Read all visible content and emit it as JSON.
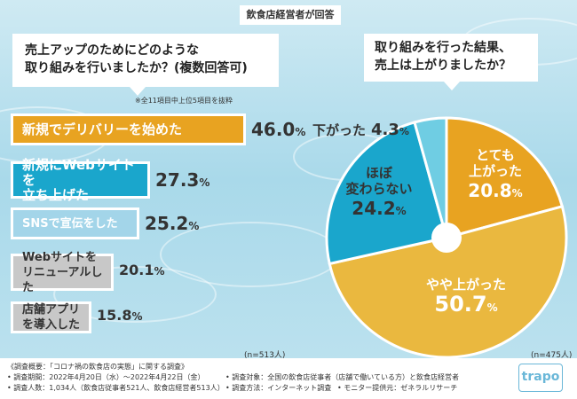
{
  "header_tag": "飲食店経営者が回答",
  "left_question": [
    "売上アップのためにどのような",
    "取り組みを行いましたか？(複数回答可)"
  ],
  "right_question": [
    "取り組みを行った結果、",
    "売上は上がりましたか？"
  ],
  "note": "※全11項目中上位5項目を抜粋",
  "left_n": "(n=513人)",
  "right_n": "(n=475人)",
  "colors": {
    "orange": "#e8a321",
    "blue": "#1aa6cc",
    "light_blue": "#a3d5e9",
    "gray": "#c8c8c8",
    "light_orange": "#eab83f",
    "pale_blue": "#6fcde3"
  },
  "chart_data": [
    {
      "type": "bar",
      "categories": [
        "新規でデリバリーを始めた",
        "新規にWebサイトを立ち上げた",
        "SNSで宣伝をした",
        "Webサイトをリニューアルした",
        "店舗アプリを導入した"
      ],
      "values": [
        46.0,
        27.3,
        25.2,
        20.1,
        15.8
      ],
      "labels": [
        {
          "lines": [
            "新規でデリバリーを始めた"
          ],
          "pct": "46.0",
          "unit": "%"
        },
        {
          "lines": [
            "新規にWebサイトを",
            "立ち上げた"
          ],
          "pct": "27.3",
          "unit": "%"
        },
        {
          "lines": [
            "SNSで宣伝をした"
          ],
          "pct": "25.2",
          "unit": "%"
        },
        {
          "lines": [
            "Webサイトを",
            "リニューアルした"
          ],
          "pct": "20.1",
          "unit": "%"
        },
        {
          "lines": [
            "店舗アプリを導入した"
          ],
          "pct": "15.8",
          "unit": "%"
        }
      ]
    },
    {
      "type": "pie",
      "categories": [
        "とても上がった",
        "やや上がった",
        "ほぼ変わらない",
        "下がった"
      ],
      "values": [
        20.8,
        50.7,
        24.2,
        4.3
      ],
      "labels": [
        {
          "lines": [
            "とても",
            "上がった"
          ],
          "pct": "20.8",
          "unit": "%"
        },
        {
          "lines": [
            "やや上がった"
          ],
          "pct": "50.7",
          "unit": "%"
        },
        {
          "lines": [
            "ほぼ",
            "変わらない"
          ],
          "pct": "24.2",
          "unit": "%"
        },
        {
          "lines": [
            "下がった"
          ],
          "pct": "4.3",
          "unit": "%"
        }
      ]
    }
  ],
  "footer": {
    "title": "《調査概要：「コロナ禍の飲食店の実態」に関する調査》",
    "period": "• 調査期間：2022年4月20日（水）～2022年4月22日（金）",
    "count": "• 調査人数：1,034人（飲食店従事者521人、飲食店経営者513人）",
    "target": "• 調査対象：全国の飲食店従事者（店舗で働いている方）と飲食店経営者",
    "method": "• 調査方法：インターネット調査",
    "provider": "• モニター提供元：ゼネラルリサーチ",
    "logo": "trapo"
  }
}
